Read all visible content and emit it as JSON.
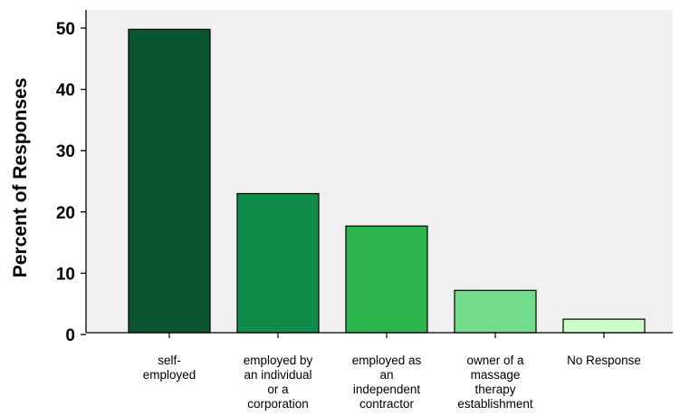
{
  "chart_data": {
    "type": "bar",
    "title": "",
    "xlabel": "",
    "ylabel": "Percent of Responses",
    "ylim": [
      0,
      50
    ],
    "yticks": [
      0,
      10,
      20,
      30,
      40,
      50
    ],
    "grid": false,
    "background": "#f0f0f0",
    "categories": [
      [
        "self-",
        "employed"
      ],
      [
        "employed by",
        "an individual",
        "or a",
        "corporation"
      ],
      [
        "employed as",
        "an",
        "independent",
        "contractor"
      ],
      [
        "owner of a",
        "massage",
        "therapy",
        "establishment"
      ],
      [
        "No Response"
      ]
    ],
    "values": [
      49.8,
      23.0,
      17.7,
      7.2,
      2.5
    ],
    "colors": [
      "#0b5630",
      "#0f8c4a",
      "#2db54d",
      "#72dc8a",
      "#ccffc8"
    ]
  }
}
